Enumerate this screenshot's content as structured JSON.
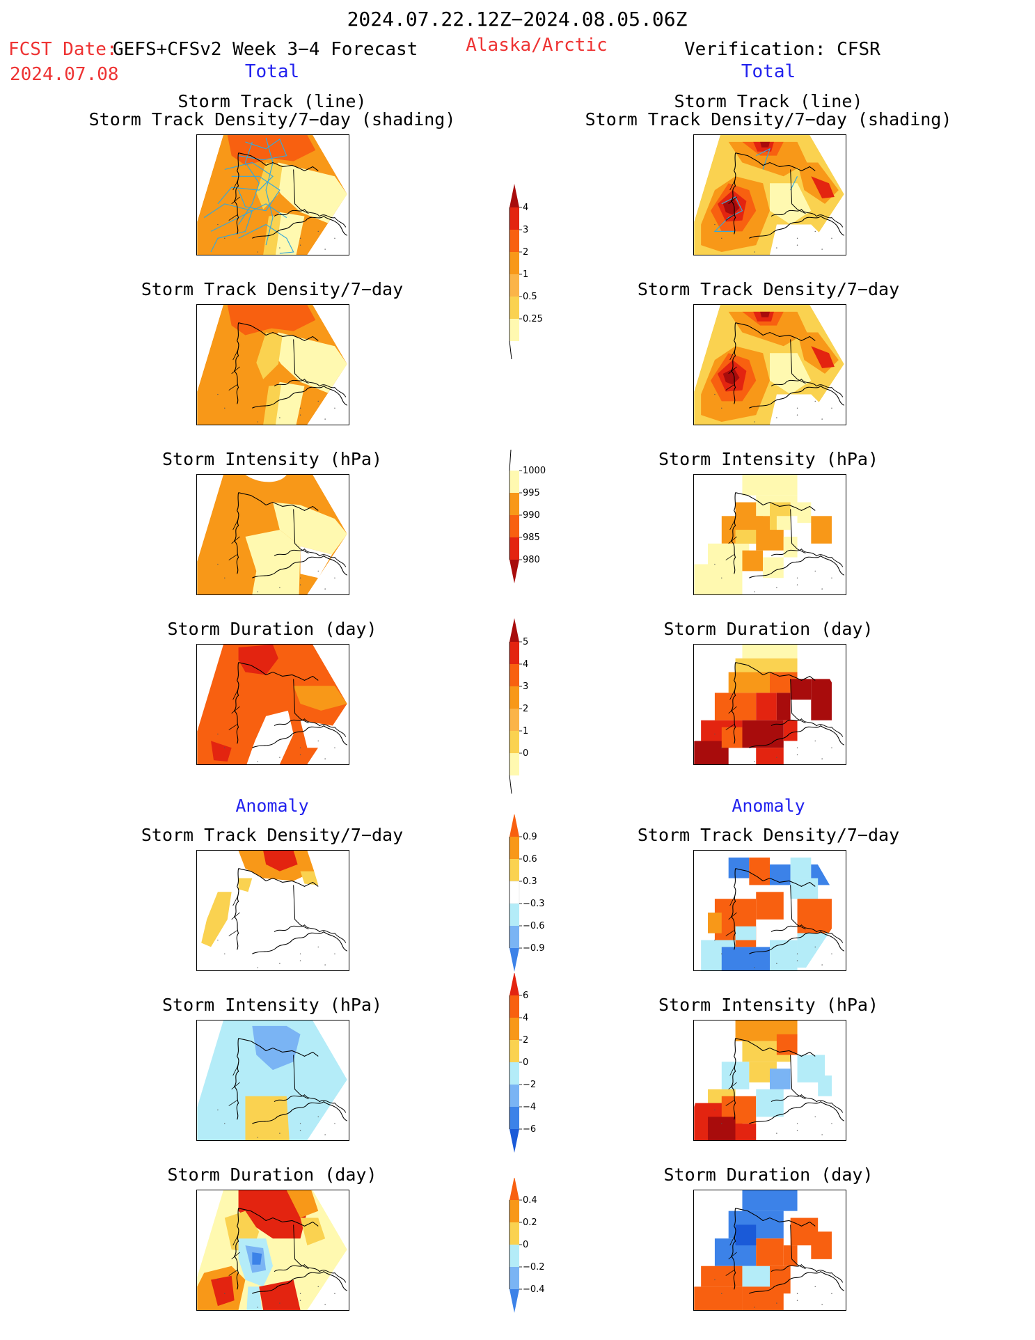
{
  "header": {
    "title": "2024.07.22.12Z−2024.08.05.06Z",
    "fcst_label": "FCST Date:",
    "fcst_model": "GEFS+CFSv2 Week 3−4 Forecast",
    "region": "Alaska/Arctic",
    "fcst_date": "2024.07.08",
    "verification": "Verification: CFSR"
  },
  "columns": [
    {
      "name": "forecast",
      "total_label": "Total",
      "anomaly_label": "Anomaly"
    },
    {
      "name": "verification",
      "total_label": "Total",
      "anomaly_label": "Anomaly"
    }
  ],
  "panel_titles": {
    "track_line": "Storm Track (line)",
    "track_shading": "Storm Track Density/7−day (shading)",
    "density": "Storm Track Density/7−day",
    "intensity": "Storm Intensity (hPa)",
    "duration": "Storm Duration (day)"
  },
  "colors": {
    "lightyellow": "#fff9b0",
    "yellow": "#fad250",
    "lightorange": "#fbb448",
    "orange": "#f89818",
    "darkorange": "#f86010",
    "red": "#e32410",
    "darkred": "#a80c0c",
    "lightblue": "#b4ecf8",
    "medblue": "#7ab4f4",
    "blue": "#3c82e8",
    "darkblue": "#1a5ad8",
    "track": "#38a8d8"
  },
  "chart_data": [
    {
      "type": "colorbar",
      "name": "Storm Track Density/7-day",
      "levels": [
        "4",
        "3",
        "2",
        "1",
        "0.5",
        "0.25"
      ],
      "colors": [
        "#a80c0c",
        "#e32410",
        "#f86010",
        "#f89818",
        "#fbb448",
        "#fad250",
        "#fff9b0"
      ]
    },
    {
      "type": "colorbar",
      "name": "Storm Intensity (hPa)",
      "levels": [
        "1000",
        "995",
        "990",
        "985",
        "980"
      ],
      "colors": [
        "#fff9b0",
        "#f89818",
        "#f86010",
        "#e32410",
        "#a80c0c"
      ]
    },
    {
      "type": "colorbar",
      "name": "Storm Duration (day)",
      "levels": [
        "5",
        "4",
        "3",
        "2",
        "1",
        "0"
      ],
      "colors": [
        "#a80c0c",
        "#e32410",
        "#f86010",
        "#f89818",
        "#fbb448",
        "#fad250",
        "#fff9b0"
      ]
    },
    {
      "type": "colorbar",
      "name": "Storm Track Density/7-day anomaly",
      "levels": [
        "0.9",
        "0.6",
        "0.3",
        "−0.3",
        "−0.6",
        "−0.9"
      ],
      "colors": [
        "#f86010",
        "#f89818",
        "#fad250",
        "#ffffff",
        "#b4ecf8",
        "#7ab4f4",
        "#3c82e8"
      ]
    },
    {
      "type": "colorbar",
      "name": "Storm Intensity anomaly (hPa)",
      "levels": [
        "6",
        "4",
        "2",
        "0",
        "−2",
        "−4",
        "−6"
      ],
      "colors": [
        "#e32410",
        "#f86010",
        "#f89818",
        "#fad250",
        "#b4ecf8",
        "#7ab4f4",
        "#3c82e8",
        "#1a5ad8"
      ]
    },
    {
      "type": "colorbar",
      "name": "Storm Duration anomaly (day)",
      "levels": [
        "0.4",
        "0.2",
        "0",
        "−0.2",
        "−0.4"
      ],
      "colors": [
        "#f86010",
        "#f89818",
        "#fad250",
        "#b4ecf8",
        "#7ab4f4",
        "#3c82e8"
      ]
    }
  ]
}
